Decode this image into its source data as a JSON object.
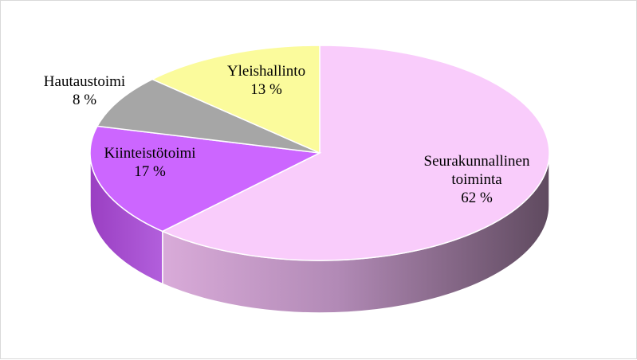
{
  "chart_data": {
    "type": "pie",
    "style": "3d",
    "legend": "none",
    "slices": [
      {
        "name": "Seurakunnallinen toiminta",
        "label_lines": [
          "Seurakunnallinen",
          "toiminta",
          "62 %"
        ],
        "value": 62,
        "color": "#f9ccfb"
      },
      {
        "name": "Kiinteistötoimi",
        "label_lines": [
          "Kiinteistötoimi",
          "17 %"
        ],
        "value": 17,
        "color": "#cc66ff"
      },
      {
        "name": "Hautaustoimi",
        "label_lines": [
          "Hautaustoimi",
          "8 %"
        ],
        "value": 8,
        "color": "#a6a6a6"
      },
      {
        "name": "Yleishallinto",
        "label_lines": [
          "Yleishallinto",
          "13 %"
        ],
        "value": 13,
        "color": "#fbfb9c"
      }
    ]
  }
}
